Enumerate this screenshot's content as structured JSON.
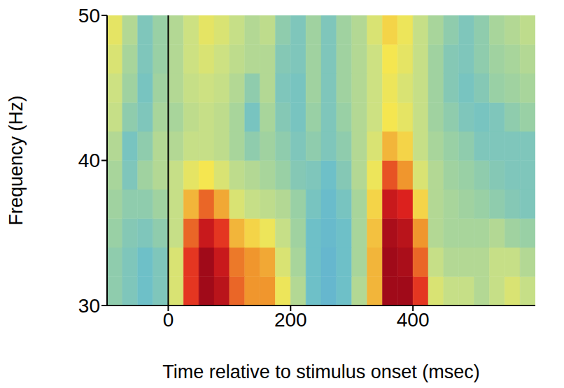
{
  "chart_data": {
    "type": "heatmap",
    "xlabel": "Time relative to stimulus onset (msec)",
    "ylabel": "Frequency (Hz)",
    "xlim": [
      -100,
      600
    ],
    "xticks": [
      0,
      200,
      400
    ],
    "ylim": [
      30,
      50
    ],
    "yticks": [
      30,
      40,
      50
    ],
    "grid": false,
    "reference_lines": [
      0
    ],
    "zlim": [
      0,
      1
    ],
    "x": [
      -87.5,
      -62.5,
      -37.5,
      -12.5,
      12.5,
      37.5,
      62.5,
      87.5,
      112.5,
      137.5,
      162.5,
      187.5,
      212.5,
      237.5,
      262.5,
      287.5,
      312.5,
      337.5,
      362.5,
      387.5,
      412.5,
      437.5,
      462.5,
      487.5,
      512.5,
      537.5,
      562.5,
      587.5
    ],
    "y": [
      31,
      33,
      35,
      37,
      39,
      41,
      43,
      45,
      47,
      49
    ],
    "z": [
      [
        0.35,
        0.3,
        0.25,
        0.3,
        0.55,
        0.85,
        1.0,
        0.95,
        0.8,
        0.75,
        0.75,
        0.6,
        0.45,
        0.25,
        0.15,
        0.25,
        0.45,
        0.7,
        1.0,
        1.0,
        0.85,
        0.55,
        0.5,
        0.5,
        0.45,
        0.5,
        0.55,
        0.5
      ],
      [
        0.35,
        0.3,
        0.25,
        0.3,
        0.55,
        0.85,
        1.0,
        0.92,
        0.78,
        0.75,
        0.72,
        0.55,
        0.42,
        0.25,
        0.15,
        0.25,
        0.42,
        0.7,
        1.0,
        0.98,
        0.8,
        0.5,
        0.45,
        0.45,
        0.45,
        0.5,
        0.5,
        0.45
      ],
      [
        0.38,
        0.32,
        0.3,
        0.35,
        0.5,
        0.8,
        0.92,
        0.85,
        0.7,
        0.65,
        0.6,
        0.5,
        0.4,
        0.25,
        0.18,
        0.25,
        0.42,
        0.68,
        0.98,
        0.95,
        0.75,
        0.45,
        0.42,
        0.42,
        0.42,
        0.45,
        0.4,
        0.38
      ],
      [
        0.4,
        0.35,
        0.35,
        0.4,
        0.5,
        0.7,
        0.8,
        0.72,
        0.55,
        0.5,
        0.48,
        0.45,
        0.38,
        0.28,
        0.2,
        0.28,
        0.42,
        0.65,
        0.92,
        0.88,
        0.65,
        0.45,
        0.42,
        0.4,
        0.38,
        0.35,
        0.32,
        0.3
      ],
      [
        0.42,
        0.3,
        0.4,
        0.45,
        0.5,
        0.58,
        0.62,
        0.55,
        0.48,
        0.45,
        0.42,
        0.38,
        0.32,
        0.3,
        0.25,
        0.32,
        0.45,
        0.6,
        0.82,
        0.75,
        0.55,
        0.45,
        0.4,
        0.38,
        0.35,
        0.32,
        0.3,
        0.3
      ],
      [
        0.45,
        0.28,
        0.35,
        0.45,
        0.45,
        0.5,
        0.5,
        0.48,
        0.42,
        0.35,
        0.4,
        0.35,
        0.3,
        0.35,
        0.3,
        0.35,
        0.45,
        0.55,
        0.7,
        0.65,
        0.5,
        0.42,
        0.38,
        0.35,
        0.3,
        0.3,
        0.3,
        0.3
      ],
      [
        0.5,
        0.35,
        0.3,
        0.42,
        0.42,
        0.48,
        0.5,
        0.48,
        0.42,
        0.28,
        0.42,
        0.32,
        0.28,
        0.38,
        0.3,
        0.38,
        0.45,
        0.52,
        0.62,
        0.58,
        0.5,
        0.4,
        0.35,
        0.3,
        0.28,
        0.3,
        0.35,
        0.38
      ],
      [
        0.52,
        0.4,
        0.28,
        0.4,
        0.45,
        0.5,
        0.52,
        0.5,
        0.45,
        0.35,
        0.45,
        0.3,
        0.28,
        0.4,
        0.3,
        0.4,
        0.45,
        0.52,
        0.6,
        0.55,
        0.5,
        0.4,
        0.32,
        0.28,
        0.32,
        0.38,
        0.4,
        0.42
      ],
      [
        0.55,
        0.42,
        0.3,
        0.38,
        0.45,
        0.52,
        0.55,
        0.52,
        0.48,
        0.45,
        0.45,
        0.32,
        0.3,
        0.4,
        0.3,
        0.4,
        0.45,
        0.52,
        0.62,
        0.58,
        0.5,
        0.4,
        0.32,
        0.3,
        0.35,
        0.4,
        0.42,
        0.45
      ],
      [
        0.58,
        0.45,
        0.3,
        0.38,
        0.45,
        0.52,
        0.58,
        0.55,
        0.5,
        0.45,
        0.48,
        0.35,
        0.3,
        0.4,
        0.3,
        0.4,
        0.45,
        0.55,
        0.65,
        0.6,
        0.5,
        0.42,
        0.35,
        0.3,
        0.35,
        0.42,
        0.45,
        0.48
      ]
    ]
  }
}
